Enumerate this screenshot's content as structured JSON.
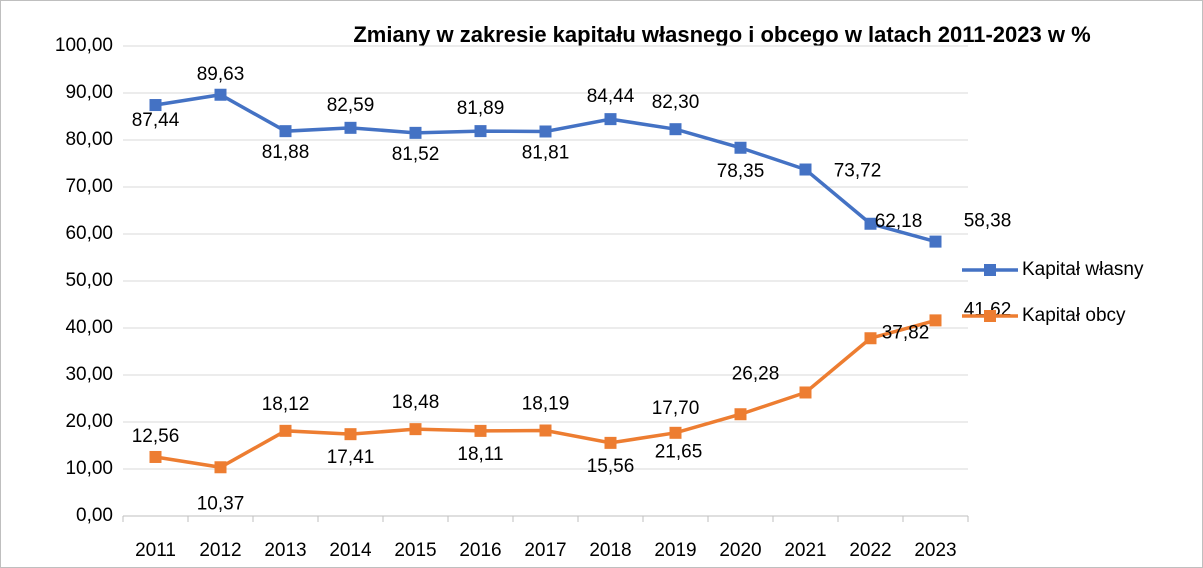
{
  "chart_data": {
    "type": "line",
    "title": "Zmiany w zakresie kapitału własnego i obcego w latach 2011-2023 w %",
    "categories": [
      "2011",
      "2012",
      "2013",
      "2014",
      "2015",
      "2016",
      "2017",
      "2018",
      "2019",
      "2020",
      "2021",
      "2022",
      "2023"
    ],
    "series": [
      {
        "name": "Kapitał własny",
        "color": "#4472c4",
        "values": [
          87.44,
          89.63,
          81.88,
          82.59,
          81.52,
          81.89,
          81.81,
          84.44,
          82.3,
          78.35,
          73.72,
          62.18,
          58.38
        ],
        "value_labels": [
          "87,44",
          "89,63",
          "81,88",
          "82,59",
          "81,52",
          "81,89",
          "81,81",
          "84,44",
          "82,30",
          "78,35",
          "73,72",
          "62,18",
          "58,38"
        ]
      },
      {
        "name": "Kapitał obcy",
        "color": "#ed7d31",
        "values": [
          12.56,
          10.37,
          18.12,
          17.41,
          18.48,
          18.11,
          18.19,
          15.56,
          17.7,
          21.65,
          26.28,
          37.82,
          41.62
        ],
        "value_labels": [
          "12,56",
          "10,37",
          "18,12",
          "17,41",
          "18,48",
          "18,11",
          "18,19",
          "15,56",
          "17,70",
          "21,65",
          "26,28",
          "37,82",
          "41,62"
        ]
      }
    ],
    "ylim": [
      0,
      100
    ],
    "yticks": [
      {
        "value": 0,
        "label": "0,00"
      },
      {
        "value": 10,
        "label": "10,00"
      },
      {
        "value": 20,
        "label": "20,00"
      },
      {
        "value": 30,
        "label": "30,00"
      },
      {
        "value": 40,
        "label": "40,00"
      },
      {
        "value": 50,
        "label": "50,00"
      },
      {
        "value": 60,
        "label": "60,00"
      },
      {
        "value": 70,
        "label": "70,00"
      },
      {
        "value": 80,
        "label": "80,00"
      },
      {
        "value": 90,
        "label": "90,00"
      },
      {
        "value": 100,
        "label": "100,00"
      }
    ],
    "grid": true,
    "legend": "right"
  }
}
